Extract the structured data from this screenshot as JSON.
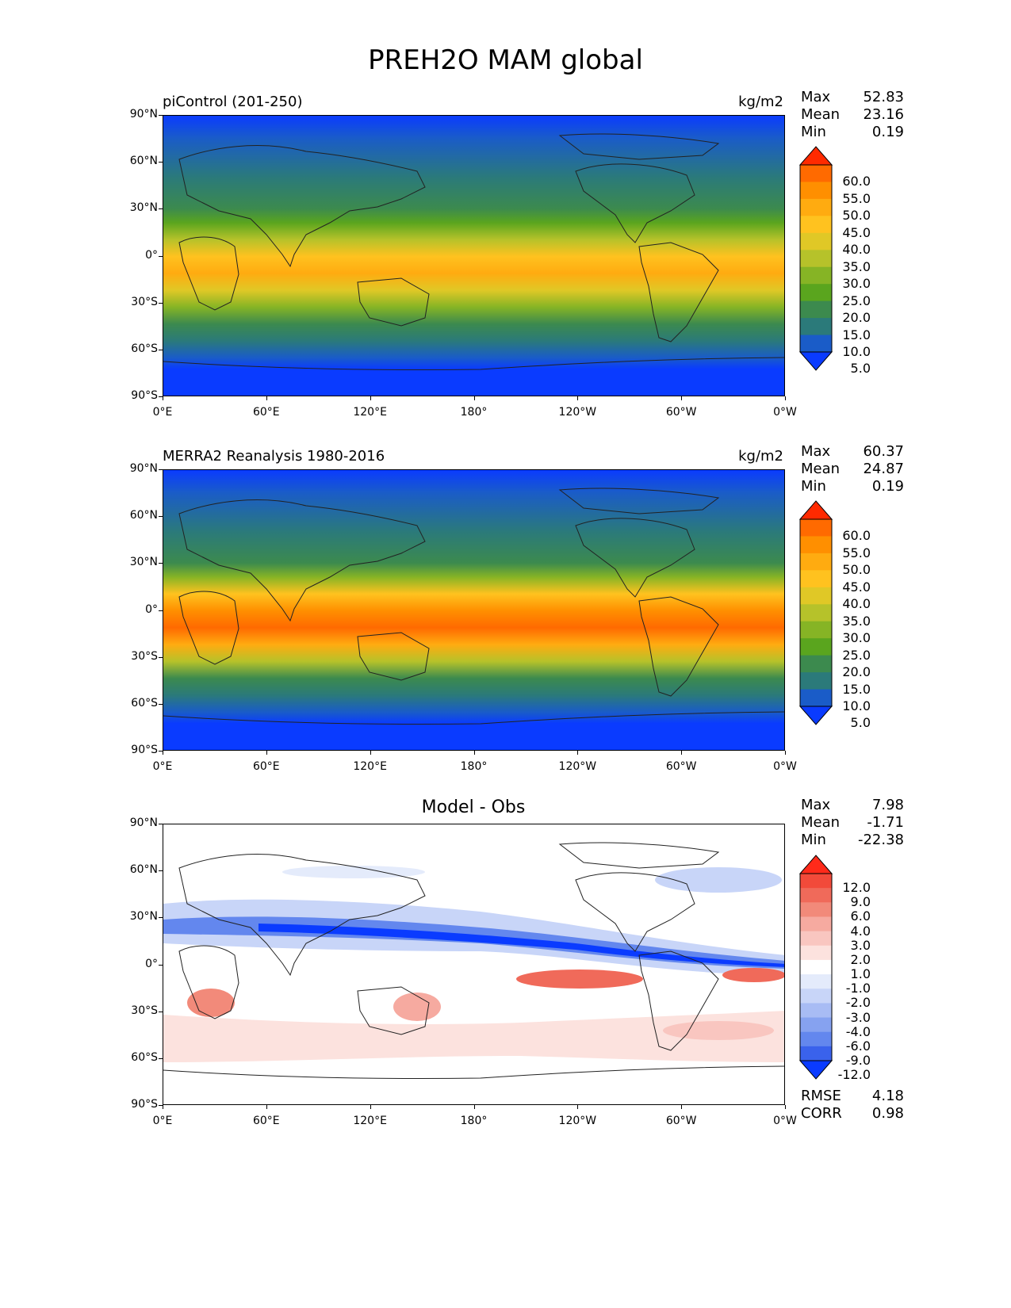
{
  "figure": {
    "title": "PREH2O MAM global"
  },
  "axes": {
    "lat_labels": [
      "90°N",
      "60°N",
      "30°N",
      "0°",
      "30°S",
      "60°S",
      "90°S"
    ],
    "lon_labels": [
      "0°E",
      "60°E",
      "120°E",
      "180°",
      "120°W",
      "60°W",
      "0°W"
    ]
  },
  "panels": [
    {
      "title": "piControl (201-250)",
      "units": "kg/m2",
      "stats": {
        "max_label": "Max",
        "max": "52.83",
        "mean_label": "Mean",
        "mean": "23.16",
        "min_label": "Min",
        "min": "0.19"
      },
      "colorbar": {
        "labels": [
          "60.0",
          "55.0",
          "50.0",
          "45.0",
          "40.0",
          "35.0",
          "30.0",
          "25.0",
          "20.0",
          "15.0",
          "10.0",
          "5.0"
        ],
        "colors": [
          "#ff2a00",
          "#ff6a00",
          "#ff8f00",
          "#ffab10",
          "#ffc21f",
          "#e0c826",
          "#b6c22a",
          "#86b425",
          "#5aa51e",
          "#3c8a4e",
          "#2b7a7a",
          "#1a5cc8",
          "#0a3bff"
        ]
      }
    },
    {
      "title": "MERRA2 Reanalysis 1980-2016",
      "units": "kg/m2",
      "stats": {
        "max_label": "Max",
        "max": "60.37",
        "mean_label": "Mean",
        "mean": "24.87",
        "min_label": "Min",
        "min": "0.19"
      },
      "colorbar": {
        "labels": [
          "60.0",
          "55.0",
          "50.0",
          "45.0",
          "40.0",
          "35.0",
          "30.0",
          "25.0",
          "20.0",
          "15.0",
          "10.0",
          "5.0"
        ],
        "colors": [
          "#ff2a00",
          "#ff6a00",
          "#ff8f00",
          "#ffab10",
          "#ffc21f",
          "#e0c826",
          "#b6c22a",
          "#86b425",
          "#5aa51e",
          "#3c8a4e",
          "#2b7a7a",
          "#1a5cc8",
          "#0a3bff"
        ]
      }
    },
    {
      "title": "Model - Obs",
      "units": "",
      "stats": {
        "max_label": "Max",
        "max": "7.98",
        "mean_label": "Mean",
        "mean": "-1.71",
        "min_label": "Min",
        "min": "-22.38"
      },
      "extra_stats": {
        "rmse_label": "RMSE",
        "rmse": "4.18",
        "corr_label": "CORR",
        "corr": "0.98"
      },
      "colorbar": {
        "labels": [
          "12.0",
          "9.0",
          "6.0",
          "4.0",
          "3.0",
          "2.0",
          "1.0",
          "-1.0",
          "-2.0",
          "-3.0",
          "-4.0",
          "-6.0",
          "-9.0",
          "-12.0"
        ],
        "colors": [
          "#ff2a1a",
          "#f24a3a",
          "#f06a5a",
          "#f28a7a",
          "#f6aaa0",
          "#f9c6c0",
          "#fce2de",
          "#ffffff",
          "#e4ebfb",
          "#c8d5f8",
          "#a8bcf4",
          "#86a2f0",
          "#6387ee",
          "#3a62ec",
          "#0a3bff"
        ]
      }
    }
  ]
}
